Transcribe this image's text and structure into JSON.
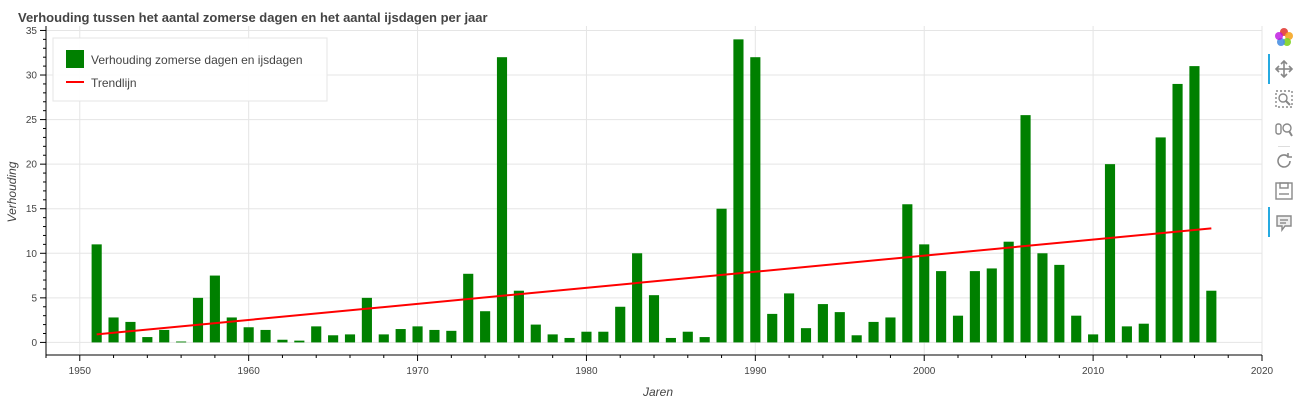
{
  "chart_data": {
    "type": "bar",
    "title": "Verhouding tussen het aantal zomerse dagen en het aantal ijsdagen per jaar",
    "xlabel": "Jaren",
    "ylabel": "Verhouding",
    "xlim": [
      1948,
      2020
    ],
    "ylim": [
      -1.3,
      35.5
    ],
    "xticks": [
      1950,
      1960,
      1970,
      1980,
      1990,
      2000,
      2010,
      2020
    ],
    "yticks": [
      0,
      5,
      10,
      15,
      20,
      25,
      30,
      35
    ],
    "grid": true,
    "legend_position": "top-left",
    "bar_color": "#008000",
    "trend_color": "#ff0000",
    "series": [
      {
        "name": "Verhouding zomerse dagen en ijsdagen",
        "type": "bar",
        "x": [
          1951,
          1952,
          1953,
          1954,
          1955,
          1956,
          1957,
          1958,
          1959,
          1960,
          1961,
          1962,
          1963,
          1964,
          1965,
          1966,
          1967,
          1968,
          1969,
          1970,
          1971,
          1972,
          1973,
          1974,
          1975,
          1976,
          1977,
          1978,
          1979,
          1980,
          1981,
          1982,
          1983,
          1984,
          1985,
          1986,
          1987,
          1988,
          1989,
          1990,
          1991,
          1992,
          1993,
          1994,
          1995,
          1996,
          1997,
          1998,
          1999,
          2000,
          2001,
          2002,
          2003,
          2004,
          2005,
          2006,
          2007,
          2008,
          2009,
          2010,
          2011,
          2012,
          2013,
          2014,
          2015,
          2016,
          2017
        ],
        "values": [
          11,
          2.8,
          2.3,
          0.6,
          1.4,
          0.1,
          5,
          7.5,
          2.8,
          1.7,
          1.4,
          0.3,
          0.2,
          1.8,
          0.8,
          0.9,
          5,
          0.9,
          1.5,
          1.8,
          1.4,
          1.3,
          7.7,
          3.5,
          32,
          5.8,
          2,
          0.9,
          0.5,
          1.2,
          1.2,
          4,
          10,
          5.3,
          0.5,
          1.2,
          0.6,
          15,
          34,
          32,
          3.2,
          5.5,
          1.6,
          4.3,
          3.4,
          0.8,
          2.3,
          2.8,
          15.5,
          11,
          8,
          3,
          8,
          8.3,
          11.3,
          25.5,
          10,
          8.7,
          3,
          0.9,
          20,
          1.8,
          2.1,
          23,
          29,
          31,
          5.8
        ]
      },
      {
        "name": "Trendlijn",
        "type": "line",
        "x": [
          1951,
          2017
        ],
        "values": [
          0.9,
          12.8
        ]
      }
    ]
  },
  "toolbar": {
    "icons": [
      "bokeh-logo-icon",
      "pan-icon",
      "box-zoom-icon",
      "wheel-zoom-icon",
      "reset-icon",
      "save-icon",
      "hover-icon"
    ]
  }
}
